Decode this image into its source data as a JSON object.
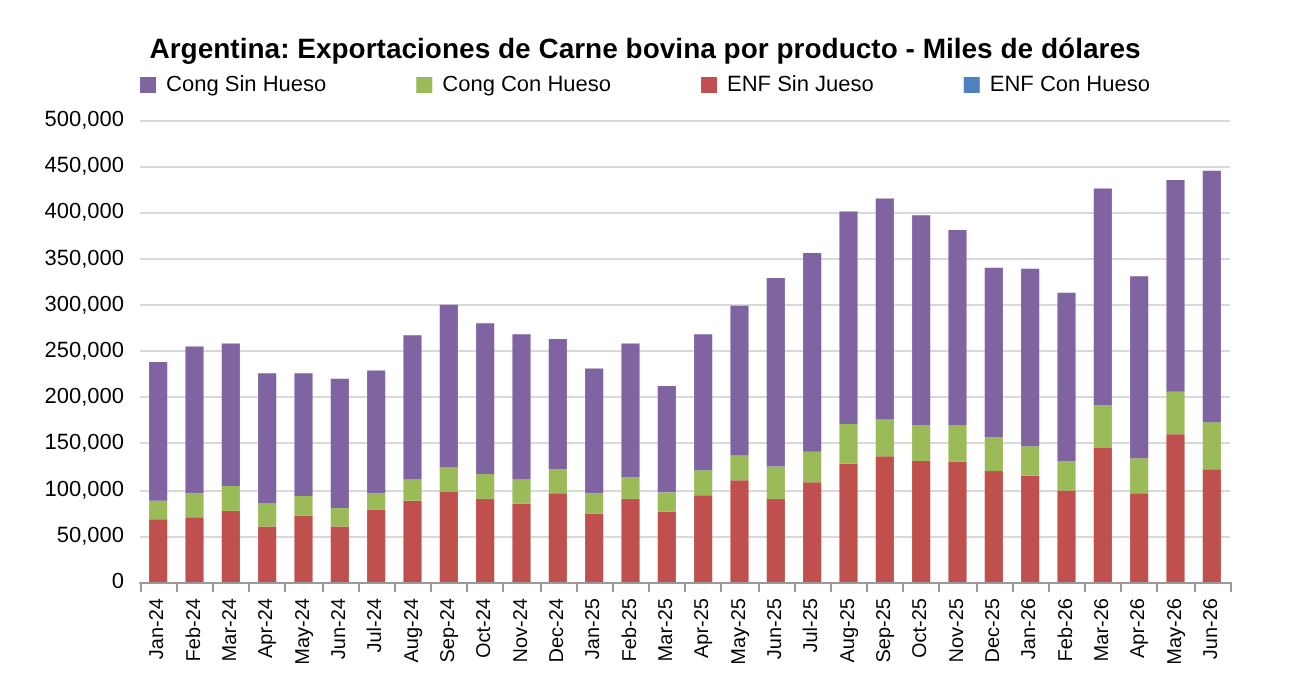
{
  "chart_data": {
    "type": "bar",
    "title": "Argentina: Exportaciones de Carne bovina por producto - Miles de dólares",
    "stacked": true,
    "legend": "top",
    "grid": "y",
    "categories": [
      "Jan-24",
      "Feb-24",
      "Mar-24",
      "Apr-24",
      "May-24",
      "Jun-24",
      "Jul-24",
      "Aug-24",
      "Sep-24",
      "Oct-24",
      "Nov-24",
      "Dec-24",
      "Jan-25",
      "Feb-25",
      "Mar-25",
      "Apr-25",
      "May-25",
      "Jun-25",
      "Jul-25",
      "Aug-25",
      "Sep-25",
      "Oct-25",
      "Nov-25",
      "Dec-25",
      "Jan-26",
      "Feb-26",
      "Mar-26",
      "Apr-26",
      "May-26",
      "Jun-26"
    ],
    "ylim": [
      0,
      500000
    ],
    "yticks": [
      0,
      {
        "value": 50000,
        "label": "50,000"
      },
      {
        "value": 100000,
        "label": "100,000"
      },
      {
        "value": 150000,
        "label": "150,000"
      },
      {
        "value": 200000,
        "label": "200,000"
      },
      {
        "value": 250000,
        "label": "250,000"
      },
      {
        "value": 300000,
        "label": "300,000"
      },
      {
        "value": 350000,
        "label": "350,000"
      },
      {
        "value": 400000,
        "label": "400,000"
      },
      {
        "value": 450000,
        "label": "450,000"
      },
      {
        "value": 500000,
        "label": "500,000"
      }
    ],
    "series": [
      {
        "name": "ENF Con Hueso",
        "color": "#4f81bd",
        "values": [
          0,
          0,
          0,
          0,
          0,
          0,
          0,
          0,
          0,
          0,
          0,
          0,
          0,
          0,
          0,
          0,
          0,
          0,
          0,
          0,
          0,
          0,
          0,
          0,
          0,
          0,
          0,
          0,
          0,
          0
        ]
      },
      {
        "name": "ENF Sin Jueso",
        "color": "#c0504d",
        "values": [
          68000,
          70000,
          77000,
          60000,
          72000,
          60000,
          78000,
          88000,
          98000,
          90000,
          85000,
          96000,
          74000,
          90000,
          76000,
          94000,
          110000,
          90000,
          108000,
          128000,
          136000,
          131000,
          130000,
          120000,
          115000,
          99000,
          145000,
          96000,
          160000,
          122000
        ]
      },
      {
        "name": "Cong Con Hueso",
        "color": "#9bbb59",
        "values": [
          20000,
          26000,
          27000,
          25000,
          21000,
          20000,
          18000,
          23000,
          26000,
          27000,
          26000,
          26000,
          22000,
          23000,
          21000,
          27000,
          27000,
          35000,
          33000,
          43000,
          40000,
          39000,
          40000,
          37000,
          32000,
          32000,
          46000,
          38000,
          46000,
          51000
        ]
      },
      {
        "name": "Cong Sin Hueso",
        "color": "#8064a2",
        "values": [
          150000,
          159000,
          154000,
          141000,
          133000,
          140000,
          133000,
          156000,
          176000,
          163000,
          157000,
          141000,
          135000,
          145000,
          115000,
          147000,
          162000,
          204000,
          215000,
          230000,
          239000,
          227000,
          211000,
          183000,
          192000,
          182000,
          235000,
          197000,
          229000,
          272000
        ]
      }
    ]
  }
}
